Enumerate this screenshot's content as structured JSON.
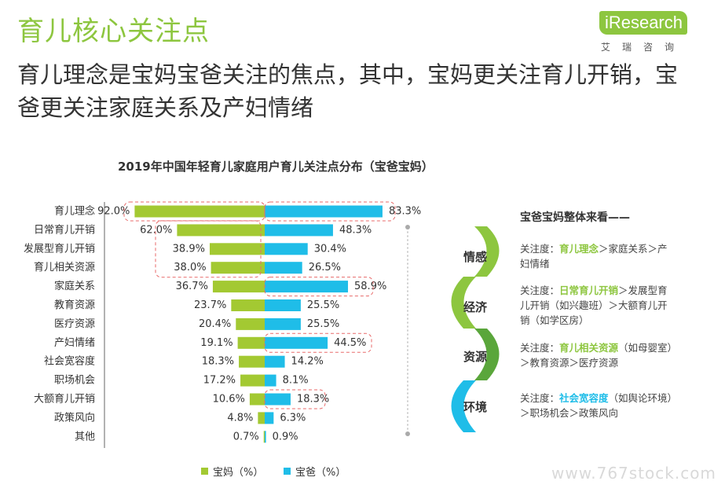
{
  "header": {
    "section_title": "育儿核心关注点",
    "headline": "育儿理念是宝妈宝爸关注的焦点，其中，宝妈更关注育儿开销，宝爸更关注家庭关系及产妇情绪"
  },
  "logo": {
    "text": "iResearch",
    "cn": "艾瑞咨询"
  },
  "chart_data": {
    "type": "bar",
    "title": "2019年中国年轻育儿家庭用户育儿关注点分布（宝爸宝妈）",
    "categories": [
      "育儿理念",
      "日常育儿开销",
      "发展型育儿开销",
      "育儿相关资源",
      "家庭关系",
      "教育资源",
      "医疗资源",
      "产妇情绪",
      "社会宽容度",
      "职场机会",
      "大额育儿开销",
      "政策风向",
      "其他"
    ],
    "series": [
      {
        "name": "宝妈（%）",
        "color": "#a3c932",
        "values": [
          92.0,
          62.0,
          38.9,
          38.0,
          36.7,
          23.7,
          20.4,
          19.1,
          18.3,
          17.2,
          10.6,
          4.8,
          0.7
        ]
      },
      {
        "name": "宝爸（%）",
        "color": "#1fbde8",
        "values": [
          83.3,
          48.3,
          30.4,
          26.5,
          58.9,
          25.5,
          25.5,
          44.5,
          14.2,
          8.1,
          18.3,
          6.3,
          0.9
        ]
      }
    ],
    "value_labels": {
      "mom": [
        "92.0%",
        "62.0%",
        "38.9%",
        "38.0%",
        "36.7%",
        "23.7%",
        "20.4%",
        "19.1%",
        "18.3%",
        "17.2%",
        "10.6%",
        "4.8%",
        "0.7%"
      ],
      "dad": [
        "83.3%",
        "48.3%",
        "30.4%",
        "26.5%",
        "58.9%",
        "25.5%",
        "25.5%",
        "44.5%",
        "14.2%",
        "8.1%",
        "18.3%",
        "6.3%",
        "0.9%"
      ]
    },
    "highlight_groups": [
      {
        "series": "宝妈（%）",
        "rows": [
          0,
          0
        ]
      },
      {
        "series": "宝爸（%）",
        "rows": [
          0,
          0
        ]
      },
      {
        "series": "宝妈（%）",
        "rows": [
          1,
          3
        ]
      },
      {
        "series": "宝爸（%）",
        "rows": [
          4,
          4
        ]
      },
      {
        "series": "宝爸（%）",
        "rows": [
          7,
          7
        ]
      },
      {
        "series": "宝爸（%）",
        "rows": [
          10,
          10
        ]
      }
    ],
    "legend": {
      "mom": "宝妈（%）",
      "dad": "宝爸（%）"
    }
  },
  "summary": {
    "heading": "宝爸宝妈整体来看——",
    "items": [
      {
        "label": "情感",
        "color": "#8dc63f",
        "prefix": "关注度：",
        "highlight": "育儿理念",
        "highlight_color": "#8dc63f",
        "rest": "＞家庭关系＞产妇情绪"
      },
      {
        "label": "经济",
        "color": "#8dc63f",
        "prefix": "关注度：",
        "highlight": "日常育儿开销",
        "highlight_color": "#8dc63f",
        "rest": "＞发展型育儿开销（如兴趣班）＞大额育儿开销（如学区房）"
      },
      {
        "label": "资源",
        "color": "#8dc63f",
        "prefix": "关注度：",
        "highlight": "育儿相关资源",
        "highlight_color": "#8dc63f",
        "rest": "（如母婴室）＞教育资源＞医疗资源"
      },
      {
        "label": "环境",
        "color": "#1fbde8",
        "prefix": "关注度：",
        "highlight": "社会宽容度",
        "highlight_color": "#1fbde8",
        "rest": "（如舆论环境）＞职场机会＞政策风向"
      }
    ]
  },
  "watermark": "www.767stock.com"
}
